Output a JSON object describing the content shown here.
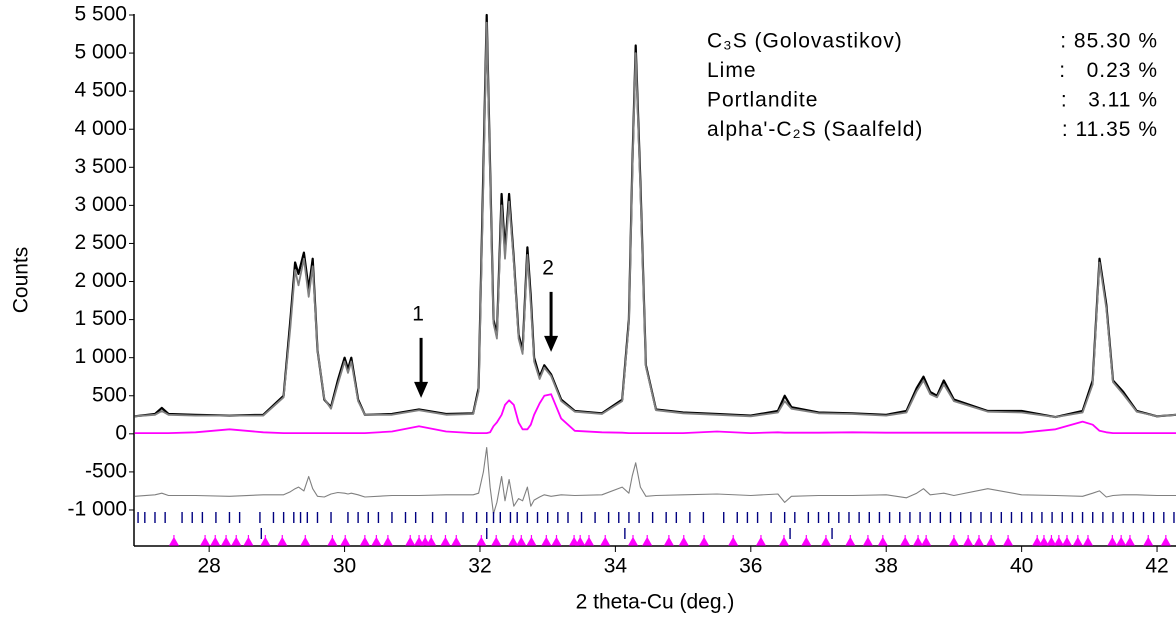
{
  "chart_data": {
    "type": "line",
    "xlabel": "2 theta-Cu (deg.)",
    "ylabel": "Counts",
    "xlim": [
      26.89,
      42.28
    ],
    "ylim": [
      -1473,
      5500
    ],
    "xticks": [
      28,
      30,
      32,
      34,
      36,
      38,
      40,
      42
    ],
    "yticks": [
      {
        "value": 5500,
        "label": "5 500"
      },
      {
        "value": 5000,
        "label": "5 000"
      },
      {
        "value": 4500,
        "label": "4 500"
      },
      {
        "value": 4000,
        "label": "4 000"
      },
      {
        "value": 3500,
        "label": "3 500"
      },
      {
        "value": 3000,
        "label": "3 000"
      },
      {
        "value": 2500,
        "label": "2 500"
      },
      {
        "value": 2000,
        "label": "2 000"
      },
      {
        "value": 1500,
        "label": "1 500"
      },
      {
        "value": 1000,
        "label": "1 000"
      },
      500,
      0,
      -500,
      {
        "value": -1000,
        "label": "-1 000"
      }
    ],
    "x": [
      26.9,
      27.2,
      27.3,
      27.4,
      27.8,
      28.3,
      28.8,
      29.1,
      29.2,
      29.27,
      29.32,
      29.4,
      29.47,
      29.53,
      29.6,
      29.7,
      29.8,
      29.9,
      30.0,
      30.05,
      30.1,
      30.2,
      30.3,
      30.7,
      31.1,
      31.5,
      31.9,
      31.98,
      32.05,
      32.1,
      32.15,
      32.2,
      32.25,
      32.32,
      32.37,
      32.43,
      32.5,
      32.57,
      32.63,
      32.7,
      32.75,
      32.8,
      32.88,
      32.95,
      33.05,
      33.2,
      33.4,
      33.8,
      34.1,
      34.2,
      34.25,
      34.3,
      34.37,
      34.45,
      34.6,
      35.0,
      35.5,
      36.0,
      36.4,
      36.5,
      36.6,
      37.0,
      37.5,
      38.0,
      38.3,
      38.45,
      38.55,
      38.65,
      38.75,
      38.85,
      39.0,
      39.5,
      40.0,
      40.5,
      40.9,
      41.05,
      41.15,
      41.25,
      41.35,
      41.5,
      41.7,
      42.0,
      42.28
    ],
    "series": [
      {
        "color": "#000000",
        "width": 2.2,
        "values": [
          230,
          260,
          340,
          260,
          250,
          240,
          250,
          500,
          1500,
          2250,
          2100,
          2380,
          1900,
          2300,
          1100,
          450,
          350,
          700,
          1000,
          850,
          1000,
          450,
          250,
          260,
          320,
          260,
          270,
          600,
          3500,
          5500,
          3500,
          1500,
          1300,
          3150,
          2400,
          3150,
          2300,
          1300,
          1100,
          2450,
          1800,
          1000,
          750,
          900,
          780,
          450,
          300,
          270,
          450,
          1500,
          3500,
          5100,
          3300,
          900,
          320,
          280,
          260,
          240,
          300,
          500,
          350,
          280,
          270,
          250,
          300,
          600,
          750,
          550,
          500,
          700,
          450,
          300,
          300,
          220,
          300,
          700,
          2300,
          1700,
          700,
          550,
          300,
          230,
          250
        ]
      },
      {
        "color": "#808080",
        "width": 1.8,
        "values": [
          230,
          250,
          300,
          250,
          240,
          240,
          240,
          480,
          1400,
          2150,
          1950,
          2300,
          1800,
          2200,
          1100,
          460,
          330,
          650,
          950,
          800,
          950,
          430,
          250,
          250,
          310,
          250,
          260,
          560,
          3300,
          5400,
          3400,
          1450,
          1250,
          3000,
          2300,
          3050,
          2250,
          1250,
          1050,
          2350,
          1700,
          950,
          720,
          870,
          760,
          430,
          290,
          260,
          430,
          1450,
          3400,
          5000,
          3200,
          880,
          310,
          270,
          250,
          230,
          280,
          430,
          330,
          270,
          260,
          240,
          280,
          560,
          700,
          520,
          480,
          650,
          430,
          290,
          280,
          220,
          280,
          650,
          2250,
          1650,
          680,
          520,
          290,
          230,
          250
        ]
      },
      {
        "color": "#ff00ff",
        "width": 1.8,
        "values": [
          10,
          10,
          10,
          10,
          20,
          60,
          20,
          10,
          10,
          10,
          10,
          10,
          10,
          10,
          10,
          10,
          10,
          10,
          10,
          10,
          10,
          10,
          10,
          30,
          100,
          30,
          10,
          10,
          10,
          10,
          20,
          100,
          150,
          250,
          380,
          440,
          380,
          150,
          60,
          60,
          120,
          250,
          400,
          500,
          520,
          200,
          40,
          20,
          15,
          10,
          10,
          10,
          10,
          10,
          10,
          10,
          30,
          10,
          20,
          15,
          15,
          15,
          20,
          15,
          15,
          15,
          15,
          15,
          15,
          15,
          15,
          15,
          15,
          60,
          160,
          120,
          40,
          20,
          10,
          10,
          10,
          10,
          10
        ]
      },
      {
        "color": "#808080",
        "width": 1.1,
        "values": [
          -820,
          -800,
          -780,
          -810,
          -810,
          -820,
          -800,
          -800,
          -760,
          -720,
          -700,
          -750,
          -560,
          -720,
          -820,
          -830,
          -790,
          -770,
          -780,
          -790,
          -780,
          -800,
          -830,
          -810,
          -810,
          -800,
          -800,
          -780,
          -500,
          -180,
          -700,
          -1050,
          -900,
          -560,
          -880,
          -600,
          -950,
          -850,
          -880,
          -700,
          -950,
          -870,
          -830,
          -800,
          -820,
          -800,
          -810,
          -800,
          -700,
          -780,
          -550,
          -380,
          -700,
          -820,
          -810,
          -800,
          -790,
          -810,
          -790,
          -900,
          -820,
          -810,
          -810,
          -800,
          -840,
          -780,
          -720,
          -800,
          -790,
          -780,
          -810,
          -720,
          -800,
          -810,
          -820,
          -780,
          -750,
          -830,
          -810,
          -800,
          -800,
          -810,
          -810
        ]
      }
    ],
    "reflections": [
      {
        "color": "#000080",
        "marker": "bar",
        "positions": [
          26.95,
          27.05,
          27.2,
          27.35,
          27.6,
          27.75,
          27.9,
          28.1,
          28.3,
          28.45,
          28.75,
          28.95,
          29.1,
          29.25,
          29.35,
          29.45,
          29.6,
          29.8,
          30.05,
          30.2,
          30.35,
          30.5,
          30.7,
          30.9,
          31.05,
          31.3,
          31.5,
          31.75,
          31.95,
          32.1,
          32.2,
          32.3,
          32.45,
          32.55,
          32.7,
          32.85,
          33.0,
          33.15,
          33.3,
          33.5,
          33.7,
          33.9,
          34.05,
          34.2,
          34.35,
          34.55,
          34.75,
          34.9,
          35.1,
          35.3,
          35.6,
          35.8,
          35.95,
          36.1,
          36.3,
          36.5,
          36.65,
          36.85,
          37.0,
          37.15,
          37.3,
          37.45,
          37.6,
          37.75,
          37.9,
          38.05,
          38.2,
          38.35,
          38.5,
          38.65,
          38.8,
          38.95,
          39.1,
          39.25,
          39.4,
          39.55,
          39.7,
          39.85,
          40.0,
          40.15,
          40.3,
          40.45,
          40.6,
          40.75,
          40.9,
          41.05,
          41.2,
          41.35,
          41.5,
          41.65,
          41.8,
          41.95,
          42.1,
          42.25
        ]
      },
      {
        "color": "#000080",
        "marker": "bar",
        "positions": [
          28.77,
          32.1,
          34.14,
          36.58,
          37.2
        ]
      },
      {
        "color": "#ff00ff",
        "marker": "triangle",
        "positions": [
          27.48,
          27.94,
          28.09,
          28.25,
          28.4,
          28.58,
          28.83,
          29.08,
          29.42,
          29.82,
          30.01,
          30.3,
          30.47,
          30.64,
          30.97,
          31.1,
          31.19,
          31.28,
          31.49,
          31.65,
          32.02,
          32.24,
          32.49,
          32.61,
          32.76,
          32.98,
          33.13,
          33.39,
          33.48,
          33.61,
          33.85,
          34.26,
          34.47,
          34.79,
          35.01,
          35.31,
          35.74,
          36.15,
          36.49,
          36.82,
          37.11,
          37.47,
          37.73,
          37.95,
          38.28,
          38.47,
          38.59,
          39.0,
          39.21,
          39.37,
          39.55,
          39.8,
          40.23,
          40.33,
          40.44,
          40.55,
          40.67,
          40.83,
          40.98,
          41.34,
          41.47,
          41.6,
          41.87,
          42.13
        ]
      }
    ],
    "annotations": [
      {
        "text": "1",
        "x": 31.13,
        "y": 472
      },
      {
        "text": "2",
        "x": 33.05,
        "y": 1076
      }
    ],
    "phase_names": [
      "C₃S (Golovastikov)",
      "Lime",
      "Portlandite",
      "alpha'-C₂S (Saalfeld)"
    ],
    "phase_amounts": [
      ": 85.30 %",
      ":   0.23 %",
      ":   3.11 %",
      ": 11.35 %"
    ]
  }
}
